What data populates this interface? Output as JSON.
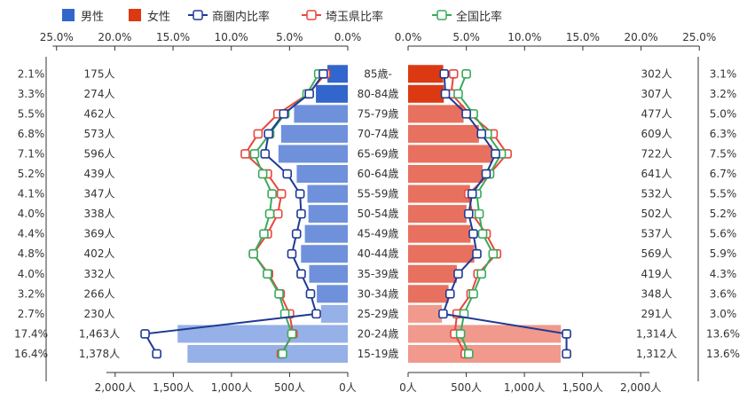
{
  "chart_data": {
    "type": "bar",
    "subtype": "population-pyramid",
    "legend": [
      {
        "name": "男性",
        "kind": "bar",
        "color": "#3366cc"
      },
      {
        "name": "女性",
        "kind": "bar",
        "color": "#dc3912"
      },
      {
        "name": "商圏内比率",
        "kind": "line",
        "color": "#1f3a93"
      },
      {
        "name": "埼玉県比率",
        "kind": "line",
        "color": "#e8463c"
      },
      {
        "name": "全国比率",
        "kind": "line",
        "color": "#3aaa5c"
      }
    ],
    "categories": [
      "85歳-",
      "80-84歳",
      "75-79歳",
      "70-74歳",
      "65-69歳",
      "60-64歳",
      "55-59歳",
      "50-54歳",
      "45-49歳",
      "40-44歳",
      "35-39歳",
      "30-34歳",
      "25-29歳",
      "20-24歳",
      "15-19歳"
    ],
    "male": {
      "counts": [
        175,
        274,
        462,
        573,
        596,
        439,
        347,
        338,
        369,
        402,
        332,
        266,
        230,
        1463,
        1378
      ],
      "count_labels": [
        "175人",
        "274人",
        "462人",
        "573人",
        "596人",
        "439人",
        "347人",
        "338人",
        "369人",
        "402人",
        "332人",
        "266人",
        "230人",
        "1,463人",
        "1,378人"
      ],
      "ratio_labels": [
        "2.1%",
        "3.3%",
        "5.5%",
        "6.8%",
        "7.1%",
        "5.2%",
        "4.1%",
        "4.0%",
        "4.4%",
        "4.8%",
        "4.0%",
        "3.2%",
        "2.7%",
        "17.4%",
        "16.4%"
      ],
      "trade_area_ratio": [
        2.1,
        3.3,
        5.5,
        6.8,
        7.1,
        5.2,
        4.1,
        4.0,
        4.4,
        4.8,
        4.0,
        3.2,
        2.7,
        17.4,
        16.4
      ],
      "saitama_ratio": [
        1.9,
        3.4,
        6.0,
        7.7,
        8.8,
        6.9,
        5.7,
        6.0,
        6.9,
        8.1,
        6.8,
        5.8,
        5.0,
        4.7,
        5.7
      ],
      "national_ratio": [
        2.5,
        3.5,
        5.4,
        6.7,
        8.0,
        7.3,
        6.5,
        6.7,
        7.2,
        8.1,
        6.9,
        5.9,
        5.4,
        4.8,
        5.6
      ]
    },
    "female": {
      "counts": [
        302,
        307,
        477,
        609,
        722,
        641,
        532,
        502,
        537,
        569,
        419,
        348,
        291,
        1314,
        1312
      ],
      "count_labels": [
        "302人",
        "307人",
        "477人",
        "609人",
        "722人",
        "641人",
        "532人",
        "502人",
        "537人",
        "569人",
        "419人",
        "348人",
        "291人",
        "1,314人",
        "1,312人"
      ],
      "ratio_labels": [
        "3.1%",
        "3.2%",
        "5.0%",
        "6.3%",
        "7.5%",
        "6.7%",
        "5.5%",
        "5.2%",
        "5.6%",
        "5.9%",
        "4.3%",
        "3.6%",
        "3.0%",
        "13.6%",
        "13.6%"
      ],
      "trade_area_ratio": [
        3.1,
        3.2,
        5.0,
        6.3,
        7.5,
        6.7,
        5.5,
        5.2,
        5.6,
        5.9,
        4.3,
        3.6,
        3.0,
        13.6,
        13.6
      ],
      "saitama_ratio": [
        3.9,
        3.7,
        5.3,
        7.3,
        8.5,
        7.0,
        5.2,
        5.5,
        6.7,
        7.6,
        6.0,
        5.4,
        4.2,
        4.0,
        4.9
      ],
      "national_ratio": [
        5.0,
        4.3,
        5.6,
        6.8,
        8.0,
        7.0,
        5.9,
        6.1,
        6.4,
        7.3,
        6.3,
        5.6,
        4.8,
        4.5,
        5.2
      ]
    },
    "percent_axis": {
      "ticks": [
        0,
        5,
        10,
        15,
        20,
        25
      ],
      "tick_labels": [
        "0.0%",
        "5.0%",
        "10.0%",
        "15.0%",
        "20.0%",
        "25.0%"
      ]
    },
    "count_axis": {
      "ticks": [
        0,
        500,
        1000,
        1500,
        2000
      ],
      "tick_labels": [
        "0人",
        "500人",
        "1,000人",
        "1,500人",
        "2,000人"
      ]
    },
    "grid": false
  }
}
